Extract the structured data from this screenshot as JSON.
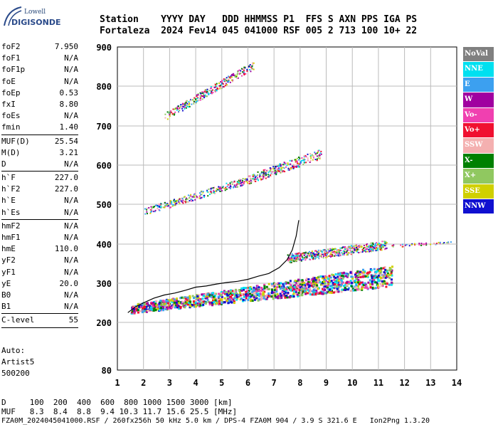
{
  "logo": {
    "line1": "Lowell",
    "line2": "DIGISONDE"
  },
  "header": {
    "line1": "Station    YYYY DAY   DDD HHMMSS P1  FFS S AXN PPS IGA PS",
    "line2": "Fortaleza  2024 Fev14 045 041000 RSF 005 2 713 100 10+ 22"
  },
  "params": [
    [
      {
        "k": "foF2",
        "v": "7.950"
      },
      {
        "k": "foF1",
        "v": "N/A"
      },
      {
        "k": "foF1p",
        "v": "N/A"
      },
      {
        "k": "foE",
        "v": "N/A"
      },
      {
        "k": "foEp",
        "v": "0.53"
      },
      {
        "k": "fxI",
        "v": "8.80"
      },
      {
        "k": "foEs",
        "v": "N/A"
      },
      {
        "k": "fmin",
        "v": "1.40"
      }
    ],
    [
      {
        "k": "MUF(D)",
        "v": "25.54"
      },
      {
        "k": "M(D)",
        "v": "3.21"
      },
      {
        "k": "D",
        "v": "N/A"
      }
    ],
    [
      {
        "k": "h`F",
        "v": "227.0"
      },
      {
        "k": "h`F2",
        "v": "227.0"
      },
      {
        "k": "h`E",
        "v": "N/A"
      },
      {
        "k": "h`Es",
        "v": "N/A"
      }
    ],
    [
      {
        "k": "hmF2",
        "v": "N/A"
      },
      {
        "k": "hmF1",
        "v": "N/A"
      },
      {
        "k": "hmE",
        "v": "110.0"
      },
      {
        "k": "yF2",
        "v": "N/A"
      },
      {
        "k": "yF1",
        "v": "N/A"
      },
      {
        "k": "yE",
        "v": "20.0"
      },
      {
        "k": "B0",
        "v": "N/A"
      },
      {
        "k": "B1",
        "v": "N/A"
      }
    ],
    [
      {
        "k": "C-level",
        "v": "55"
      }
    ]
  ],
  "auto": {
    "line1": "Auto:",
    "line2": "Artist5",
    "line3": "500200"
  },
  "legend": [
    {
      "label": "NoVal",
      "color": "#808080"
    },
    {
      "label": "NNE",
      "color": "#00e0f0"
    },
    {
      "label": "E",
      "color": "#3ca0f0"
    },
    {
      "label": "W",
      "color": "#a000a0"
    },
    {
      "label": "Vo-",
      "color": "#f040b0"
    },
    {
      "label": "Vo+",
      "color": "#f01030"
    },
    {
      "label": "SSW",
      "color": "#f4b0b0"
    },
    {
      "label": "X-",
      "color": "#008000"
    },
    {
      "label": "X+",
      "color": "#90c860"
    },
    {
      "label": "SSE",
      "color": "#d0d000"
    },
    {
      "label": "NNW",
      "color": "#1010d0"
    }
  ],
  "footer": {
    "line1": "D     100  200  400  600  800 1000 1500 3000 [km]",
    "line2": "MUF   8.3  8.4  8.8  9.4 10.3 11.7 15.6 25.5 [MHz]",
    "line3": "FZA0M_2024045041000.RSF / 260fx256h 50 kHz 5.0 km / DPS-4 FZA0M 904 / 3.9 S 321.6 E   Ion2Png 1.3.20"
  },
  "chart_data": {
    "type": "scatter",
    "xlim": [
      1,
      14
    ],
    "ylim": [
      80,
      900
    ],
    "xticks": [
      1,
      2,
      3,
      4,
      5,
      6,
      7,
      8,
      9,
      10,
      11,
      12,
      13,
      14
    ],
    "yticks": [
      80,
      200,
      300,
      400,
      500,
      600,
      700,
      800,
      900
    ],
    "grid": true,
    "legend_position": "right",
    "trace_x": [
      1.4,
      1.7,
      2.0,
      2.4,
      2.8,
      3.2,
      3.6,
      4.0,
      4.4,
      4.8,
      5.2,
      5.6,
      6.0,
      6.4,
      6.8,
      7.2,
      7.5,
      7.7,
      7.85,
      7.95
    ],
    "trace_y": [
      225,
      240,
      250,
      262,
      270,
      275,
      282,
      290,
      293,
      298,
      302,
      305,
      310,
      318,
      325,
      340,
      360,
      385,
      420,
      460
    ],
    "clusters": [
      {
        "name": "F-trace",
        "x0": 1.5,
        "x1": 11.5,
        "h0": 232,
        "h1": 310,
        "spread": 22
      },
      {
        "name": "F-upper",
        "x0": 7.5,
        "x1": 11.3,
        "h0": 360,
        "h1": 395,
        "spread": 22
      },
      {
        "name": "second-hop",
        "x0": 2.0,
        "x1": 6.0,
        "h0": 478,
        "h1": 560,
        "spread": 18
      },
      {
        "name": "second-hop-2",
        "x0": 6.0,
        "x1": 8.8,
        "h0": 560,
        "h1": 625,
        "spread": 25
      },
      {
        "name": "third-hop",
        "x0": 2.8,
        "x1": 6.2,
        "h0": 720,
        "h1": 850,
        "spread": 20
      },
      {
        "name": "far-tail",
        "x0": 11.5,
        "x1": 13.8,
        "h0": 395,
        "h1": 405,
        "spread": 6
      }
    ]
  }
}
